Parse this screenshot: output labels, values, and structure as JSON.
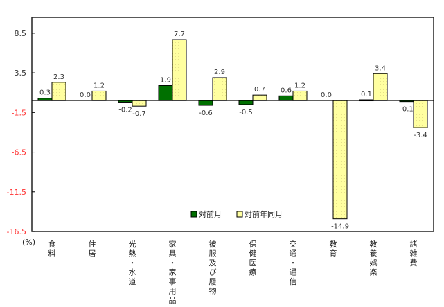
{
  "chart_data": {
    "type": "bar",
    "title": "",
    "xlabel": "",
    "ylabel": "(%)",
    "ylim": [
      -16.5,
      10.5
    ],
    "yticks": [
      8.5,
      3.5,
      -1.5,
      -6.5,
      -11.5,
      -16.5
    ],
    "ytick_labels": [
      "8.5",
      "3.5",
      "-1.5",
      "-6.5",
      "-11.5",
      "-16.5"
    ],
    "grid": false,
    "legend_position": "inside-bottom-center",
    "categories": [
      "食料",
      "住居",
      "光熱・水道",
      "家具・家事用品",
      "被服及び履物",
      "保健医療",
      "交通・通信",
      "教育",
      "教養娯楽",
      "諸雑費"
    ],
    "series": [
      {
        "name": "対前月",
        "color": "#007000",
        "values": [
          0.3,
          0.0,
          -0.2,
          1.9,
          -0.6,
          -0.5,
          0.6,
          0.0,
          0.1,
          -0.1
        ],
        "labels": [
          "0.3",
          "0.0",
          "-0.2",
          "1.9",
          "-0.6",
          "-0.5",
          "0.6",
          "0.0",
          "0.1",
          "-0.1"
        ]
      },
      {
        "name": "対前年同月",
        "color": "#ffffa0",
        "values": [
          2.3,
          1.2,
          -0.7,
          7.7,
          2.9,
          0.7,
          1.2,
          -14.9,
          3.4,
          -3.4
        ],
        "labels": [
          "2.3",
          "1.2",
          "-0.7",
          "7.7",
          "2.9",
          "0.7",
          "1.2",
          "-14.9",
          "3.4",
          "-3.4"
        ]
      }
    ],
    "positive_label_color": "#333333",
    "negative_label_color": "#ff3333",
    "negative_tick_color": "#ff3333"
  },
  "legend": {
    "items": [
      {
        "label": "対前月",
        "color": "#007000"
      },
      {
        "label": "対前年同月",
        "color": "#ffffa0"
      }
    ]
  },
  "axis": {
    "unit_label": "(%)"
  }
}
